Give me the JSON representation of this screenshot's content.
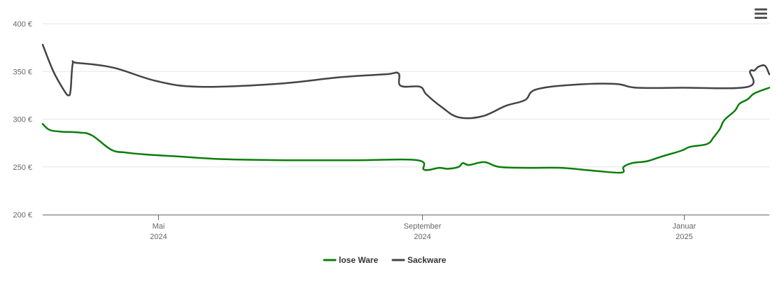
{
  "chart_data": {
    "type": "line",
    "title": "",
    "xlabel": "",
    "ylabel": "",
    "ylim": [
      200,
      400
    ],
    "y_ticks": [
      {
        "value": 200,
        "label": "200 €"
      },
      {
        "value": 250,
        "label": "250 €"
      },
      {
        "value": 300,
        "label": "300 €"
      },
      {
        "value": 350,
        "label": "350 €"
      },
      {
        "value": 400,
        "label": "400 €"
      }
    ],
    "x_range": [
      "2024-03-08",
      "2025-02-10"
    ],
    "x_ticks": [
      {
        "date": "2024-05-01",
        "label": "Mai",
        "sublabel": "2024"
      },
      {
        "date": "2024-09-01",
        "label": "September",
        "sublabel": "2024"
      },
      {
        "date": "2025-01-01",
        "label": "Januar",
        "sublabel": "2025"
      }
    ],
    "grid": true,
    "legend_position": "bottom-center",
    "series": [
      {
        "name": "lose Ware",
        "color": "#0a7d0a",
        "points": [
          [
            "2024-03-08",
            295
          ],
          [
            "2024-03-11",
            289
          ],
          [
            "2024-03-16",
            287
          ],
          [
            "2024-03-25",
            286
          ],
          [
            "2024-03-31",
            283
          ],
          [
            "2024-04-09",
            268
          ],
          [
            "2024-04-16",
            265
          ],
          [
            "2024-04-25",
            263
          ],
          [
            "2024-05-10",
            261
          ],
          [
            "2024-06-01",
            258
          ],
          [
            "2024-07-01",
            257
          ],
          [
            "2024-08-01",
            257
          ],
          [
            "2024-08-30",
            257
          ],
          [
            "2024-09-02",
            247
          ],
          [
            "2024-09-09",
            249
          ],
          [
            "2024-09-13",
            248
          ],
          [
            "2024-09-18",
            250
          ],
          [
            "2024-09-20",
            254
          ],
          [
            "2024-09-23",
            252
          ],
          [
            "2024-09-30",
            255
          ],
          [
            "2024-10-07",
            250
          ],
          [
            "2024-10-20",
            249
          ],
          [
            "2024-11-05",
            249
          ],
          [
            "2024-11-20",
            246
          ],
          [
            "2024-12-03",
            244
          ],
          [
            "2024-12-04",
            250
          ],
          [
            "2024-12-08",
            254
          ],
          [
            "2024-12-15",
            256
          ],
          [
            "2024-12-22",
            261
          ],
          [
            "2024-12-31",
            267
          ],
          [
            "2025-01-04",
            271
          ],
          [
            "2025-01-12",
            274
          ],
          [
            "2025-01-15",
            281
          ],
          [
            "2025-01-18",
            290
          ],
          [
            "2025-01-20",
            299
          ],
          [
            "2025-01-25",
            309
          ],
          [
            "2025-01-27",
            316
          ],
          [
            "2025-01-31",
            321
          ],
          [
            "2025-02-03",
            327
          ],
          [
            "2025-02-10",
            333
          ]
        ]
      },
      {
        "name": "Sackware",
        "color": "#434348",
        "points": [
          [
            "2024-03-08",
            378
          ],
          [
            "2024-03-13",
            350
          ],
          [
            "2024-03-18",
            330
          ],
          [
            "2024-03-20",
            325
          ],
          [
            "2024-03-21",
            330
          ],
          [
            "2024-03-22",
            358
          ],
          [
            "2024-03-24",
            359
          ],
          [
            "2024-04-10",
            354
          ],
          [
            "2024-04-30",
            340
          ],
          [
            "2024-05-20",
            334
          ],
          [
            "2024-06-25",
            337
          ],
          [
            "2024-07-25",
            344
          ],
          [
            "2024-08-15",
            347
          ],
          [
            "2024-08-21",
            348
          ],
          [
            "2024-08-22",
            335
          ],
          [
            "2024-08-31",
            334
          ],
          [
            "2024-09-03",
            326
          ],
          [
            "2024-09-10",
            313
          ],
          [
            "2024-09-18",
            302
          ],
          [
            "2024-09-29",
            303
          ],
          [
            "2024-10-10",
            314
          ],
          [
            "2024-10-19",
            320
          ],
          [
            "2024-10-24",
            331
          ],
          [
            "2024-11-10",
            336
          ],
          [
            "2024-11-30",
            337
          ],
          [
            "2024-12-10",
            333
          ],
          [
            "2024-12-31",
            333
          ],
          [
            "2025-01-31",
            334
          ],
          [
            "2025-02-01",
            350
          ],
          [
            "2025-02-03",
            351
          ],
          [
            "2025-02-05",
            355
          ],
          [
            "2025-02-08",
            356
          ],
          [
            "2025-02-10",
            347
          ]
        ]
      }
    ]
  },
  "menu": {
    "icon": "hamburger-icon"
  }
}
